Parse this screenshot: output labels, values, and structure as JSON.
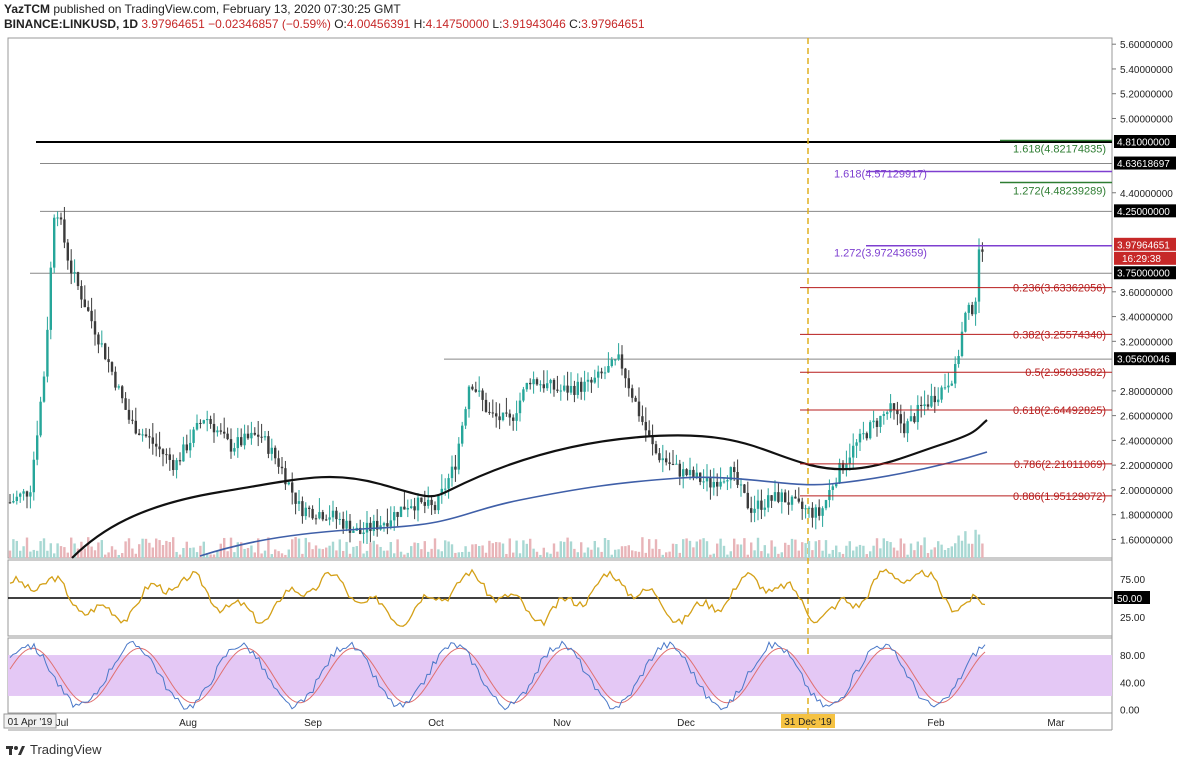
{
  "header": {
    "author": "YazTCM",
    "published": "published on TradingView.com, February 13, 2020 07:30:25 GMT",
    "symbol": "BINANCE:LINKUSD, 1D",
    "last": "3.97964651",
    "change": "−0.02346857 (−0.59%)",
    "o_label": "O:",
    "o": "4.00456391",
    "h_label": "H:",
    "h": "4.14750000",
    "l_label": "L:",
    "l": "3.91943046",
    "c_label": "C:",
    "c": "3.97964651"
  },
  "brand": "TradingView",
  "colors": {
    "up": "#26a69a",
    "down": "#3b3b3b",
    "ma_black": "#111111",
    "ma_blue": "#3f5fa8",
    "fib_red": "#b71c1c",
    "fib_purple": "#7e3fd0",
    "fib_green": "#2e7d32",
    "rsi": "#d4a017",
    "stoch_band": "#e4c8f5"
  },
  "chart_data": {
    "type": "candlestick",
    "y_ticks": [
      "5.60000000",
      "5.40000000",
      "5.20000000",
      "5.00000000",
      "4.40000000",
      "3.60000000",
      "3.40000000",
      "3.20000000",
      "2.80000000",
      "2.60000000",
      "2.40000000",
      "2.20000000",
      "2.00000000",
      "1.80000000",
      "1.60000000"
    ],
    "ylim": [
      1.45,
      5.65
    ],
    "x_ticks": [
      "Jul",
      "Aug",
      "Sep",
      "Oct",
      "Nov",
      "Dec",
      "Feb",
      "Mar"
    ],
    "x_start_label": "01 Apr '19",
    "x_highlight_label": "31 Dec '19",
    "price_badges": [
      {
        "value": 4.81,
        "label": "4.81000000",
        "bg": "#000000"
      },
      {
        "value": 4.636,
        "label": "4.63618697",
        "bg": "#000000"
      },
      {
        "value": 4.25,
        "label": "4.25000000",
        "bg": "#000000"
      },
      {
        "value": 3.9796,
        "label": "3.97964651",
        "bg": "#c62828"
      },
      {
        "value": 3.75,
        "label": "3.75000000",
        "bg": "#000000"
      },
      {
        "value": 3.056,
        "label": "3.05600046",
        "bg": "#000000"
      }
    ],
    "countdown": "16:29:38",
    "fib_retracements": [
      {
        "ratio": "0.236",
        "value": "3.63362056",
        "v": 3.6336
      },
      {
        "ratio": "0.382",
        "value": "3.25574340",
        "v": 3.2557
      },
      {
        "ratio": "0.5",
        "value": "2.95033582",
        "v": 2.9503
      },
      {
        "ratio": "0.618",
        "value": "2.64492825",
        "v": 2.6449
      },
      {
        "ratio": "0.786",
        "value": "2.21011069",
        "v": 2.2101
      },
      {
        "ratio": "0.886",
        "value": "1.95129072",
        "v": 1.9513
      }
    ],
    "fib_extensions_purple": [
      {
        "ratio": "1.618",
        "value": "4.57129917",
        "v": 4.5713
      },
      {
        "ratio": "1.272",
        "value": "3.97243659",
        "v": 3.9724
      }
    ],
    "fib_extensions_green": [
      {
        "ratio": "1.618",
        "value": "4.82174835",
        "v": 4.8217
      },
      {
        "ratio": "1.272",
        "value": "4.48239289",
        "v": 4.4824
      }
    ],
    "rsi": {
      "ticks": [
        "75.00",
        "25.00"
      ],
      "level_label": "50.00",
      "level": 50,
      "range": [
        0,
        100
      ]
    },
    "stoch": {
      "ticks": [
        "80.00",
        "40.00",
        "0.00"
      ],
      "band": [
        20,
        80
      ],
      "range": [
        -5,
        105
      ]
    }
  }
}
